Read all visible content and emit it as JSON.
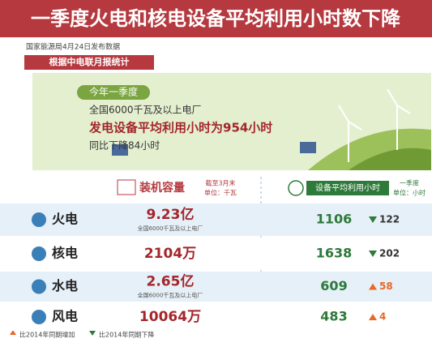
{
  "header": {
    "title": "一季度火电和核电设备平均利用小时数下降",
    "source": "国家能源局4月24日发布数据",
    "tag": "根据中电联月报统计"
  },
  "banner": {
    "label": "今年一季度",
    "line1": "全国6000千瓦及以上电厂",
    "line2": "发电设备平均利用小时为954小时",
    "line3": "同比下降84小时"
  },
  "table": {
    "capacity_header": {
      "title": "装机容量",
      "note": "截至3月末",
      "unit": "单位：千瓦"
    },
    "hours_header": {
      "title": "设备平均利用小时",
      "note": "一季度",
      "unit": "单位：小时"
    },
    "rows": [
      {
        "name": "火电",
        "capacity": "9.23亿",
        "capacity_note": "全国6000千瓦及以上电厂",
        "hours": "1106",
        "change": {
          "value": -122,
          "label": "122"
        }
      },
      {
        "name": "核电",
        "capacity": "2104万",
        "hours": "1638",
        "change": {
          "value": -202,
          "label": "202"
        }
      },
      {
        "name": "水电",
        "capacity": "2.65亿",
        "capacity_note": "全国6000千瓦及以上电厂",
        "hours": "609",
        "change": {
          "value": 58,
          "label": "58"
        }
      },
      {
        "name": "风电",
        "capacity": "10064万",
        "hours": "483",
        "change": {
          "value": 4,
          "label": "4"
        }
      }
    ]
  },
  "legend": {
    "up": "比2014年同期增加",
    "down": "比2014年同期下降"
  }
}
